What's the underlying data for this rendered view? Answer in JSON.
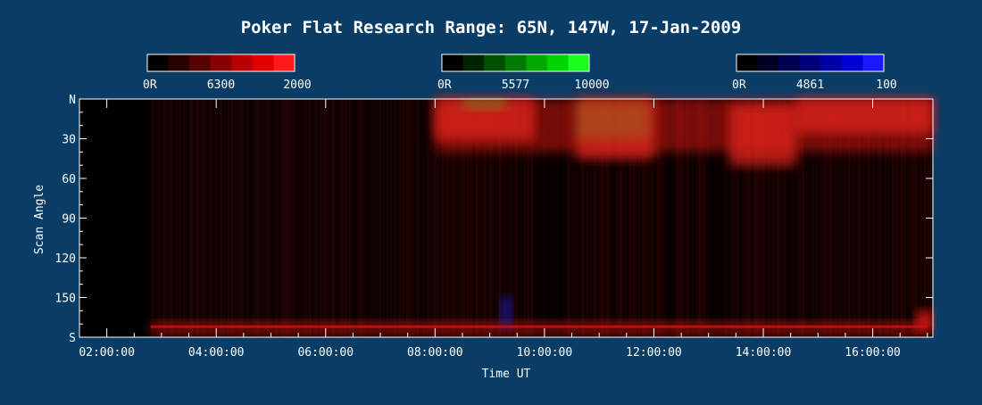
{
  "chart_data": {
    "type": "heatmap",
    "title": "Poker Flat Research Range: 65N, 147W, 17-Jan-2009",
    "xlabel": "Time UT",
    "ylabel": "Scan Angle",
    "x_tick_labels": [
      "02:00:00",
      "04:00:00",
      "06:00:00",
      "08:00:00",
      "10:00:00",
      "12:00:00",
      "14:00:00",
      "16:00:00"
    ],
    "y_tick_labels": [
      "N",
      "30",
      "60",
      "90",
      "120",
      "150",
      "S"
    ],
    "y_tick_values": [
      0,
      30,
      60,
      90,
      120,
      150,
      180
    ],
    "x_range_hours": [
      1.5,
      17.1
    ],
    "x_tick_hours": [
      2,
      4,
      6,
      8,
      10,
      12,
      14,
      16
    ],
    "colorbars": [
      {
        "name": "6300",
        "min_label": "0R",
        "mid_label": "6300",
        "max_label": "2000",
        "colors": [
          "#000000",
          "#2a0000",
          "#590000",
          "#8a0000",
          "#b80000",
          "#e10000",
          "#ff1a1a"
        ]
      },
      {
        "name": "5577",
        "min_label": "0R",
        "mid_label": "5577",
        "max_label": "10000",
        "colors": [
          "#000000",
          "#002400",
          "#005000",
          "#007a00",
          "#00a800",
          "#00d400",
          "#19ff19"
        ]
      },
      {
        "name": "4861",
        "min_label": "0R",
        "mid_label": "4861",
        "max_label": "100",
        "colors": [
          "#000000",
          "#000024",
          "#000050",
          "#00007a",
          "#0000a8",
          "#0000d4",
          "#1919ff"
        ]
      }
    ],
    "features": [
      {
        "channel": "6300",
        "t_start": 2.8,
        "t_end": 17.0,
        "angle_start": 168,
        "angle_end": 178,
        "level": 0.55
      },
      {
        "channel": "6300",
        "t_start": 8.0,
        "t_end": 17.1,
        "angle_start": 0,
        "angle_end": 40,
        "level": 0.8
      },
      {
        "channel": "5577",
        "t_start": 8.5,
        "t_end": 9.3,
        "angle_start": 0,
        "angle_end": 8,
        "level": 0.7
      },
      {
        "channel": "5577",
        "t_start": 10.6,
        "t_end": 11.9,
        "angle_start": 3,
        "angle_end": 30,
        "level": 0.6
      },
      {
        "channel": "6300",
        "t_start": 16.8,
        "t_end": 17.1,
        "angle_start": 160,
        "angle_end": 175,
        "level": 1.0
      },
      {
        "channel": "4861",
        "t_start": 9.2,
        "t_end": 9.4,
        "angle_start": 150,
        "angle_end": 172,
        "level": 0.7
      }
    ],
    "grid": false
  }
}
